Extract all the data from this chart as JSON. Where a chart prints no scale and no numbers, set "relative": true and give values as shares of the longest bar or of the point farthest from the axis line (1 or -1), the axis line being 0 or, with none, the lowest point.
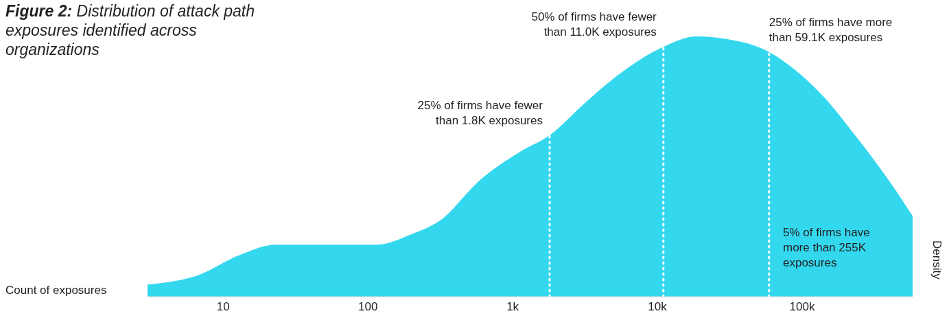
{
  "chart_data": {
    "type": "area",
    "title": "Figure 2: Distribution of attack path exposures identified across organizations",
    "xlabel": "Count of exposures",
    "ylabel": "Density",
    "relative": true,
    "log": "x",
    "xlim": [
      3,
      580000
    ],
    "xticks": [
      {
        "value": 10,
        "label": "10"
      },
      {
        "value": 100,
        "label": "100"
      },
      {
        "value": 1000,
        "label": "1k"
      },
      {
        "value": 10000,
        "label": "10k"
      },
      {
        "value": 100000,
        "label": "100k"
      }
    ],
    "x": [
      3,
      6.8,
      13,
      23,
      44,
      116,
      200,
      310,
      600,
      1150,
      1800,
      3100,
      5300,
      11000,
      18600,
      30000,
      59100,
      90000,
      140000,
      240000,
      417000,
      580000
    ],
    "series": [
      {
        "color": "#34d8ee",
        "values": [
          0.047,
          0.084,
          0.16,
          0.2,
          0.2,
          0.2,
          0.24,
          0.29,
          0.45,
          0.56,
          0.62,
          0.74,
          0.85,
          0.96,
          1,
          0.99,
          0.94,
          0.87,
          0.77,
          0.61,
          0.43,
          0.31
        ]
      }
    ],
    "ref_lines": [
      {
        "axis": "x",
        "value": 1800,
        "label": "25% of firms have fewer than 1.8K exposures",
        "color": "#ffffff",
        "line_style": "dotted"
      },
      {
        "axis": "x",
        "value": 11000,
        "label": "50% of firms have fewer than 11.0K exposures",
        "color": "#ffffff",
        "line_style": "dotted"
      },
      {
        "axis": "x",
        "value": 59100,
        "label": "25% of firms have more than 59.1K exposures",
        "color": "#ffffff",
        "line_style": "dotted"
      }
    ],
    "annotations": [
      "5% of firms have more than 255K exposures"
    ],
    "line_style": "solid"
  }
}
